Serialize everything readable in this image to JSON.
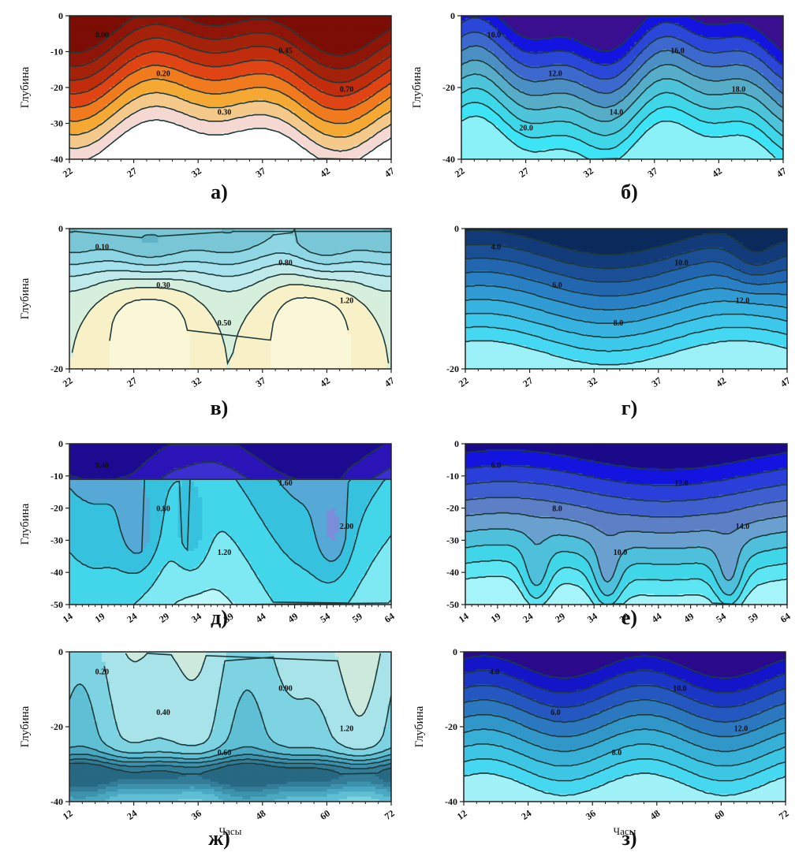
{
  "chart_data": [
    {
      "id": "a",
      "type": "heatmap",
      "caption": "а)",
      "ylabel": "Глубина",
      "xlabel": "",
      "xticks": [
        "22",
        "27",
        "32",
        "37",
        "42",
        "47"
      ],
      "yticks": [
        "0",
        "-10",
        "-20",
        "-30",
        "-40"
      ],
      "xlim": [
        22,
        47
      ],
      "ylim": [
        -40,
        0
      ],
      "palette": [
        "#ffffff",
        "#f6d8d2",
        "#f5c98a",
        "#f5a833",
        "#f07a1d",
        "#e14414",
        "#c02c0c",
        "#a5220a",
        "#8f1508",
        "#7b0d05"
      ],
      "contour_labels": [
        "0.00",
        "0.20",
        "0.30",
        "0.45",
        "0.70"
      ],
      "grid": false
    },
    {
      "id": "b",
      "type": "heatmap",
      "caption": "б)",
      "ylabel": "Глубина",
      "xlabel": "",
      "xticks": [
        "22",
        "27",
        "32",
        "37",
        "42",
        "47"
      ],
      "yticks": [
        "0",
        "-20",
        "-40"
      ],
      "xlim": [
        22,
        47
      ],
      "ylim": [
        -40,
        0
      ],
      "palette": [
        "#3a0f8f",
        "#1414e0",
        "#2a47d9",
        "#3d69cf",
        "#4b8fc4",
        "#57adc8",
        "#4ec4da",
        "#3fd6e8",
        "#3ce4f5",
        "#8af1f8"
      ],
      "contour_labels": [
        "10.0",
        "12.0",
        "14.0",
        "16.0",
        "18.0",
        "20.0"
      ],
      "grid": false
    },
    {
      "id": "c",
      "type": "heatmap",
      "caption": "в)",
      "ylabel": "Глубина",
      "xlabel": "",
      "xticks": [
        "22",
        "27",
        "32",
        "37",
        "42",
        "47"
      ],
      "yticks": [
        "0",
        "-20"
      ],
      "xlim": [
        22,
        47
      ],
      "ylim": [
        -35,
        0
      ],
      "palette": [
        "#faf7d8",
        "#f8f1c8",
        "#d6eedc",
        "#bfe9ea",
        "#a6e2ee",
        "#8fd6e4",
        "#78c6d6",
        "#60b3c6",
        "#4a9db2",
        "#3b8aa0"
      ],
      "contour_labels": [
        "0.10",
        "0.30",
        "0.50",
        "0.80",
        "1.20"
      ],
      "grid": false
    },
    {
      "id": "g",
      "type": "heatmap",
      "caption": "г)",
      "ylabel": "",
      "xlabel": "",
      "xticks": [
        "22",
        "27",
        "32",
        "37",
        "42",
        "47"
      ],
      "yticks": [
        "0",
        "-20"
      ],
      "xlim": [
        22,
        47
      ],
      "ylim": [
        -35,
        0
      ],
      "palette": [
        "#0b2a5c",
        "#123b7a",
        "#1a4f96",
        "#2266b0",
        "#2a80c4",
        "#319bd4",
        "#36b3e0",
        "#3cc8ea",
        "#44d8f2",
        "#9cf0f8"
      ],
      "contour_labels": [
        "4.0",
        "6.0",
        "8.0",
        "10.0",
        "12.0"
      ],
      "grid": false
    },
    {
      "id": "d",
      "type": "heatmap",
      "caption": "д)",
      "ylabel": "Глубина",
      "xlabel": "",
      "xticks": [
        "14",
        "19",
        "24",
        "29",
        "34",
        "39",
        "44",
        "49",
        "54",
        "59",
        "64"
      ],
      "yticks": [
        "0",
        "-10",
        "-20",
        "-30",
        "-40",
        "-50"
      ],
      "xlim": [
        14,
        64
      ],
      "ylim": [
        -50,
        0
      ],
      "palette": [
        "#b9f7fb",
        "#7ee8f3",
        "#43d6ea",
        "#36c2df",
        "#56a8d6",
        "#7b8cd8",
        "#6b6ae0",
        "#3c2fd0",
        "#2a14b8",
        "#1c0a90"
      ],
      "contour_labels": [
        "0.40",
        "0.80",
        "1.20",
        "1.60",
        "2.00"
      ],
      "grid": false
    },
    {
      "id": "e",
      "type": "heatmap",
      "caption": "е)",
      "ylabel": "",
      "xlabel": "",
      "xticks": [
        "14",
        "19",
        "24",
        "29",
        "34",
        "39",
        "44",
        "49",
        "54",
        "59",
        "64"
      ],
      "yticks": [
        "0",
        "-10",
        "-20",
        "-30",
        "-40",
        "-50"
      ],
      "xlim": [
        14,
        64
      ],
      "ylim": [
        -50,
        0
      ],
      "palette": [
        "#1a0a8a",
        "#1414e0",
        "#2a3fd9",
        "#3f5fd0",
        "#5c7fc6",
        "#6aa0cf",
        "#4ec0dc",
        "#3fd6e8",
        "#5ce6f3",
        "#a4f4f9"
      ],
      "contour_labels": [
        "6.0",
        "8.0",
        "10.0",
        "12.0",
        "14.0"
      ],
      "grid": false
    },
    {
      "id": "zh",
      "type": "heatmap",
      "caption": "ж)",
      "ylabel": "Глубина",
      "xlabel": "Часы",
      "xticks": [
        "12",
        "24",
        "36",
        "48",
        "60",
        "72"
      ],
      "yticks": [
        "0",
        "-20",
        "-40"
      ],
      "xlim": [
        12,
        72
      ],
      "ylim": [
        -55,
        0
      ],
      "palette": [
        "#faf5d2",
        "#f5ecc0",
        "#cde9dc",
        "#a8e3ea",
        "#7dd3e2",
        "#5fbfd4",
        "#4aa8c2",
        "#3d92ae",
        "#327c98",
        "#276882"
      ],
      "contour_labels": [
        "0.20",
        "0.40",
        "0.60",
        "0.90",
        "1.20"
      ],
      "grid": false
    },
    {
      "id": "z",
      "type": "heatmap",
      "caption": "з)",
      "ylabel": "Глубина",
      "xlabel": "Часы",
      "xticks": [
        "12",
        "24",
        "36",
        "48",
        "60",
        "72"
      ],
      "yticks": [
        "0",
        "-20",
        "-40"
      ],
      "xlim": [
        12,
        72
      ],
      "ylim": [
        -55,
        0
      ],
      "palette": [
        "#2a0a8a",
        "#1414c8",
        "#1b36c4",
        "#2457c0",
        "#2c78c0",
        "#3196c8",
        "#36b0d6",
        "#3cc6e4",
        "#46d8f0",
        "#a0f2f8"
      ],
      "contour_labels": [
        "4.0",
        "6.0",
        "8.0",
        "10.0",
        "12.0"
      ],
      "grid": false
    }
  ]
}
